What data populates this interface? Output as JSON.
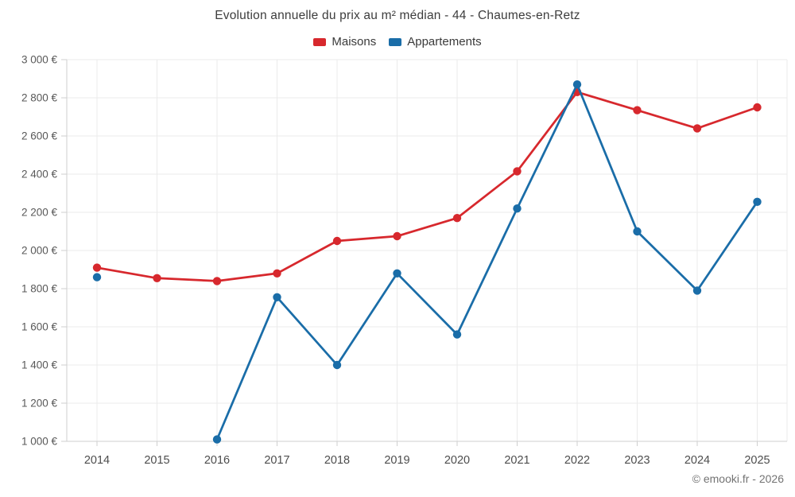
{
  "footer": {
    "copyright": "© emooki.fr - 2026"
  },
  "chart_data": {
    "type": "line",
    "title": "Evolution annuelle du prix au m² médian - 44 - Chaumes-en-Retz",
    "categories": [
      "2014",
      "2015",
      "2016",
      "2017",
      "2018",
      "2019",
      "2020",
      "2021",
      "2022",
      "2023",
      "2024",
      "2025"
    ],
    "series": [
      {
        "name": "Maisons",
        "color": "#d7282d",
        "values": [
          1910,
          1855,
          1840,
          1880,
          2050,
          2075,
          2170,
          2415,
          2830,
          2735,
          2640,
          2750
        ]
      },
      {
        "name": "Appartements",
        "color": "#1a6da8",
        "values": [
          1860,
          null,
          1010,
          1755,
          1400,
          1880,
          1560,
          2220,
          2870,
          2100,
          1790,
          2255
        ]
      }
    ],
    "xlabel": "",
    "ylabel": "",
    "ylim": [
      1000,
      3000
    ],
    "ytick_step": 200,
    "yticks": [
      {
        "value": 1000,
        "label": "1 000 €"
      },
      {
        "value": 1200,
        "label": "1 200 €"
      },
      {
        "value": 1400,
        "label": "1 400 €"
      },
      {
        "value": 1600,
        "label": "1 600 €"
      },
      {
        "value": 1800,
        "label": "1 800 €"
      },
      {
        "value": 2000,
        "label": "2 000 €"
      },
      {
        "value": 2200,
        "label": "2 200 €"
      },
      {
        "value": 2400,
        "label": "2 400 €"
      },
      {
        "value": 2600,
        "label": "2 600 €"
      },
      {
        "value": 2800,
        "label": "2 800 €"
      },
      {
        "value": 3000,
        "label": "3 000 €"
      }
    ],
    "grid": true,
    "legend_position": "top",
    "currency": "€"
  }
}
